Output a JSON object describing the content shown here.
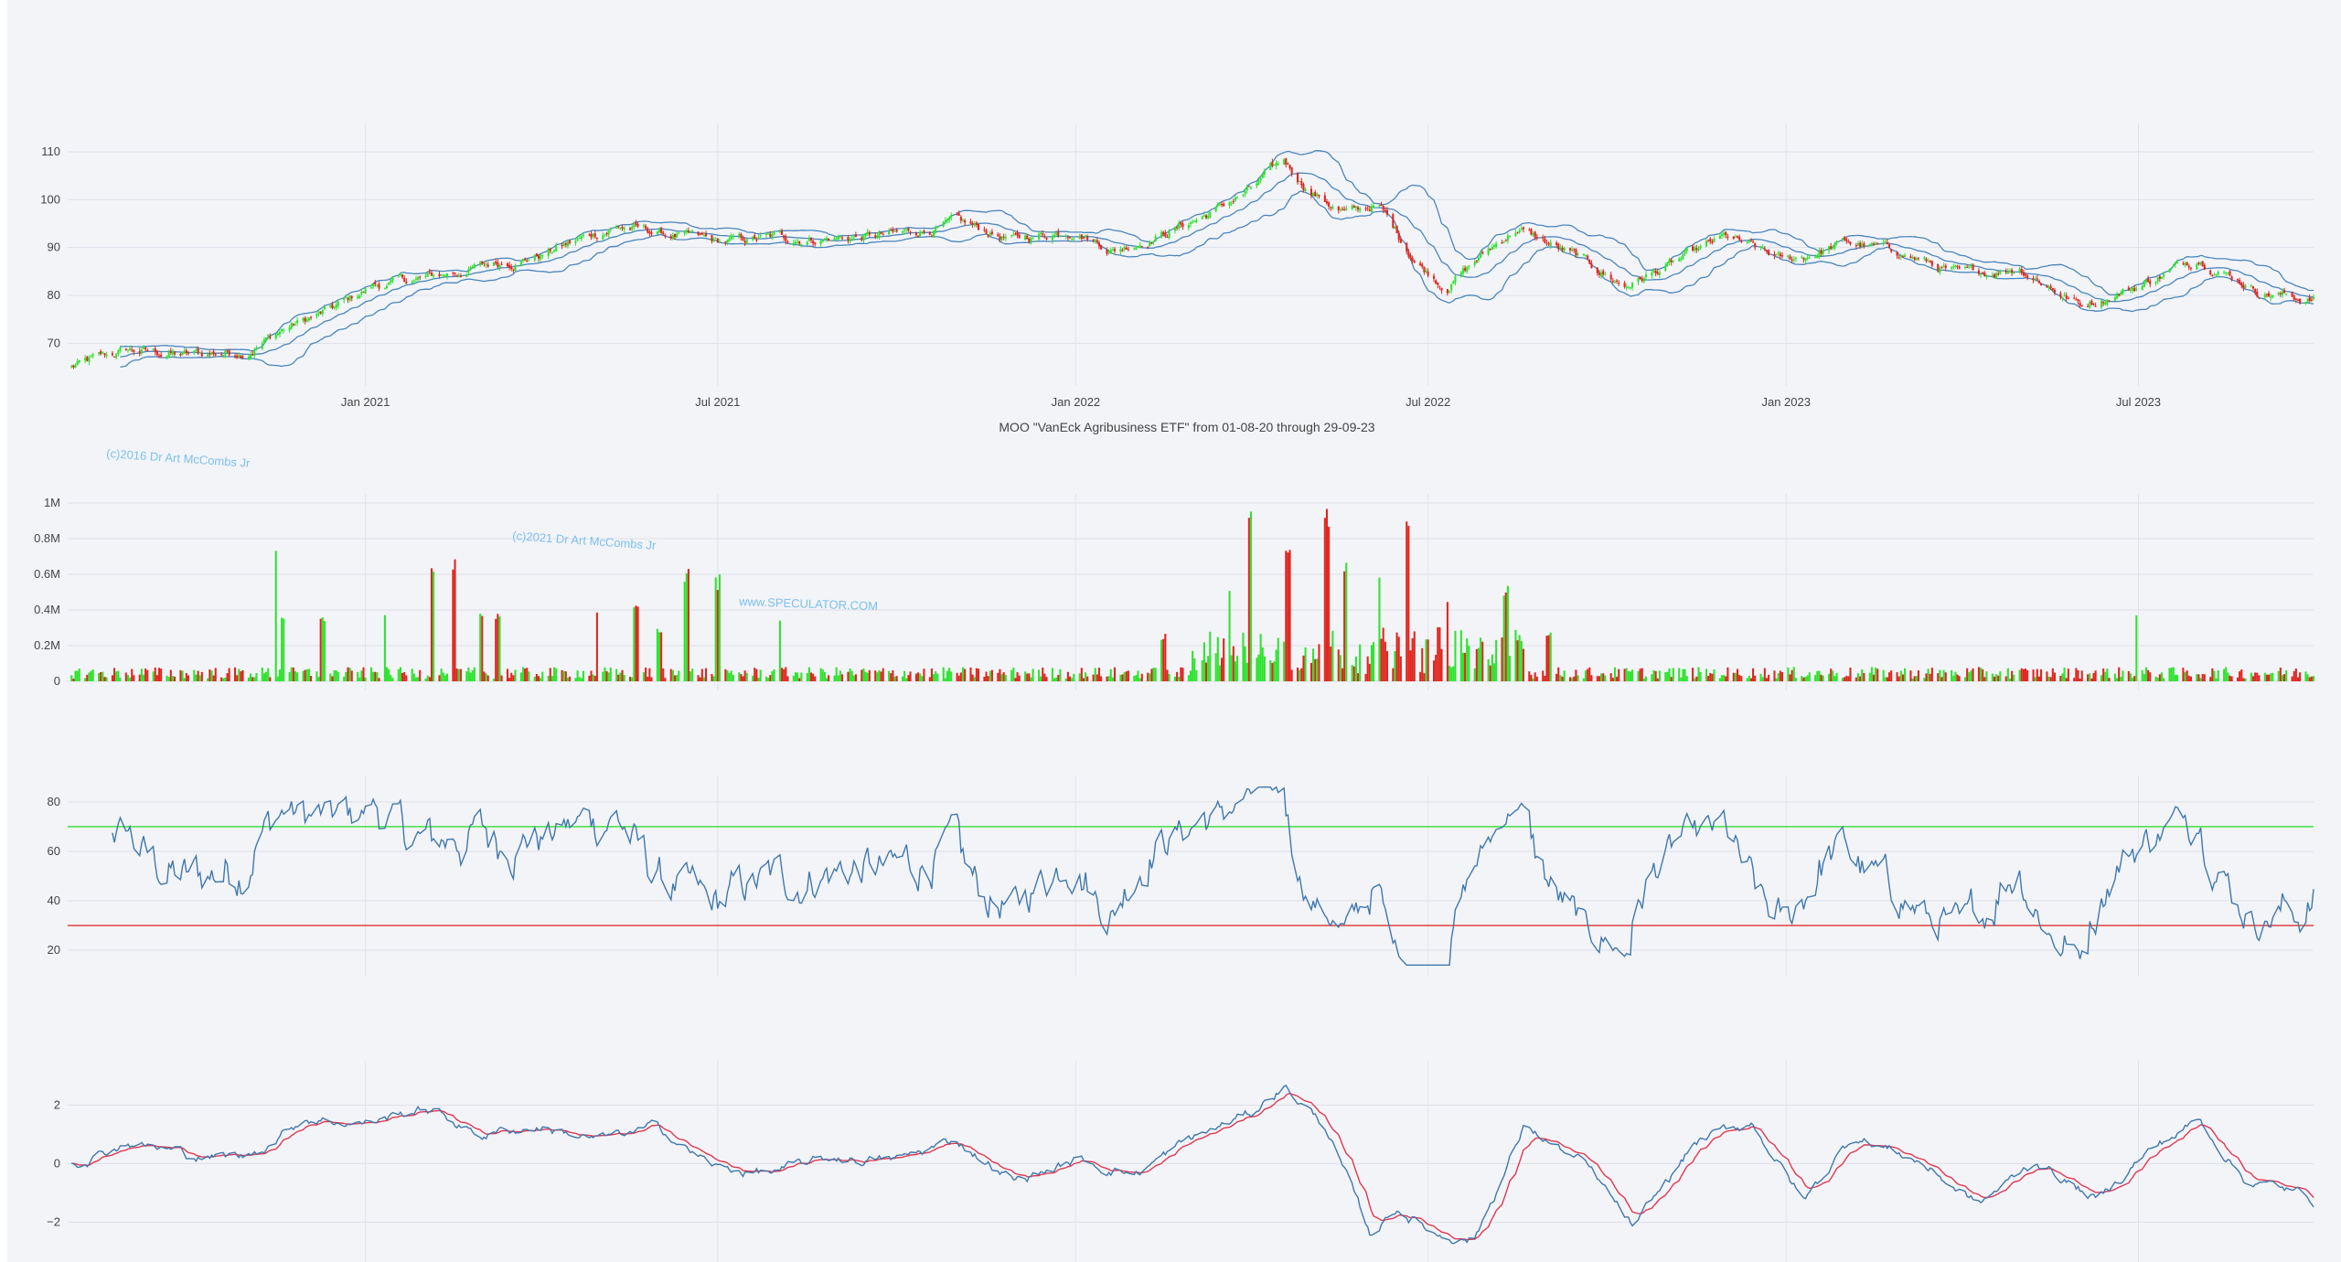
{
  "chart_data": [
    {
      "type": "candlestick",
      "name_id": "price-panel",
      "ylim": [
        63,
        114
      ],
      "yticks": [
        "70",
        "80",
        "90",
        "100",
        "110"
      ],
      "ytick_values": [
        70,
        80,
        90,
        100,
        110
      ],
      "xlim": [
        "2020-08-01",
        "2023-09-29"
      ],
      "xticks": [
        "Jan 2021",
        "Jul 2021",
        "Jan 2022",
        "Jul 2022",
        "Jan 2023",
        "Jul 2023"
      ],
      "xtick_dates": [
        "2021-01-01",
        "2021-07-01",
        "2022-01-01",
        "2022-07-01",
        "2023-01-01",
        "2023-07-01"
      ],
      "close_anchors": [
        [
          "2020-08-03",
          65
        ],
        [
          "2020-09-01",
          68.5
        ],
        [
          "2020-10-01",
          67.5
        ],
        [
          "2020-11-01",
          68.5
        ],
        [
          "2020-11-20",
          73
        ],
        [
          "2020-12-15",
          77
        ],
        [
          "2021-01-05",
          82
        ],
        [
          "2021-02-01",
          83.5
        ],
        [
          "2021-03-01",
          86
        ],
        [
          "2021-04-01",
          88.5
        ],
        [
          "2021-05-10",
          94.5
        ],
        [
          "2021-06-01",
          93
        ],
        [
          "2021-07-01",
          91
        ],
        [
          "2021-08-01",
          92
        ],
        [
          "2021-09-01",
          92
        ],
        [
          "2021-10-01",
          92.5
        ],
        [
          "2021-11-01",
          95
        ],
        [
          "2021-12-01",
          91.5
        ],
        [
          "2022-01-01",
          94
        ],
        [
          "2022-01-20",
          89.5
        ],
        [
          "2022-02-15",
          93
        ],
        [
          "2022-03-10",
          97
        ],
        [
          "2022-04-01",
          102
        ],
        [
          "2022-04-18",
          108
        ],
        [
          "2022-05-01",
          102
        ],
        [
          "2022-05-20",
          97
        ],
        [
          "2022-06-05",
          99
        ],
        [
          "2022-06-25",
          87
        ],
        [
          "2022-07-10",
          82
        ],
        [
          "2022-08-15",
          94
        ],
        [
          "2022-09-15",
          88
        ],
        [
          "2022-10-10",
          82
        ],
        [
          "2022-11-01",
          86
        ],
        [
          "2022-12-01",
          92
        ],
        [
          "2023-01-01",
          87
        ],
        [
          "2023-02-01",
          91
        ],
        [
          "2023-03-01",
          89
        ],
        [
          "2023-04-01",
          84
        ],
        [
          "2023-05-01",
          86
        ],
        [
          "2023-06-01",
          78
        ],
        [
          "2023-07-01",
          82
        ],
        [
          "2023-08-01",
          88
        ],
        [
          "2023-09-01",
          81
        ],
        [
          "2023-09-29",
          79
        ]
      ],
      "bollinger": {
        "window": 20,
        "stdev": 2,
        "color": "#4a86bd"
      },
      "up_color": "#2fe32f",
      "down_color": "#e0261f"
    },
    {
      "type": "bar",
      "name_id": "volume-panel",
      "ylim": [
        0,
        1000000
      ],
      "yticks": [
        "0",
        "0.2M",
        "0.4M",
        "0.6M",
        "0.8M",
        "1M"
      ],
      "ytick_values": [
        0,
        200000,
        400000,
        600000,
        800000,
        1000000
      ],
      "base_volume": 50000,
      "spikes": [
        [
          "2020-11-15",
          820000
        ],
        [
          "2020-11-20",
          400000
        ],
        [
          "2020-12-10",
          390000
        ],
        [
          "2021-01-10",
          410000
        ],
        [
          "2021-02-05",
          720000
        ],
        [
          "2021-02-15",
          730000
        ],
        [
          "2021-03-01",
          390000
        ],
        [
          "2021-03-10",
          400000
        ],
        [
          "2021-05-01",
          390000
        ],
        [
          "2021-05-20",
          460000
        ],
        [
          "2021-06-01",
          300000
        ],
        [
          "2021-06-15",
          650000
        ],
        [
          "2021-07-01",
          600000
        ],
        [
          "2021-08-01",
          380000
        ],
        [
          "2022-02-15",
          270000
        ],
        [
          "2022-03-20",
          580000
        ],
        [
          "2022-04-01",
          980000
        ],
        [
          "2022-04-20",
          830000
        ],
        [
          "2022-05-10",
          980000
        ],
        [
          "2022-05-20",
          700000
        ],
        [
          "2022-06-05",
          650000
        ],
        [
          "2022-06-20",
          980000
        ],
        [
          "2022-07-10",
          520000
        ],
        [
          "2022-08-10",
          560000
        ],
        [
          "2022-09-01",
          300000
        ],
        [
          "2023-07-01",
          390000
        ]
      ],
      "up_color": "#2fe32f",
      "down_color": "#e0261f"
    },
    {
      "type": "line",
      "name_id": "rsi-panel",
      "ylim": [
        13,
        87
      ],
      "yticks": [
        "20",
        "40",
        "60",
        "80"
      ],
      "ytick_values": [
        20,
        40,
        60,
        80
      ],
      "overbought": 70,
      "oversold": 30,
      "overbought_color": "#33dd33",
      "oversold_color": "#e03030",
      "line_color": "#3f78ad"
    },
    {
      "type": "line",
      "name_id": "macd-panel",
      "ylim": [
        -3.3,
        3.2
      ],
      "yticks": [
        "2",
        "0",
        "−2"
      ],
      "ytick_values": [
        2,
        0,
        -2
      ],
      "series": [
        {
          "color": "#3f78ad"
        },
        {
          "color": "#e03850"
        }
      ],
      "anchors": [
        [
          "2020-08-03",
          0
        ],
        [
          "2020-09-01",
          0.8
        ],
        [
          "2020-10-01",
          0.3
        ],
        [
          "2020-11-01",
          0.2
        ],
        [
          "2020-12-01",
          1.6
        ],
        [
          "2021-01-01",
          1.4
        ],
        [
          "2021-02-01",
          1.9
        ],
        [
          "2021-03-01",
          1.0
        ],
        [
          "2021-04-01",
          1.3
        ],
        [
          "2021-05-01",
          0.8
        ],
        [
          "2021-06-01",
          1.2
        ],
        [
          "2021-07-01",
          -0.2
        ],
        [
          "2021-08-01",
          -0.3
        ],
        [
          "2021-09-01",
          0.2
        ],
        [
          "2021-10-01",
          0.1
        ],
        [
          "2021-11-01",
          0.8
        ],
        [
          "2021-12-01",
          -0.6
        ],
        [
          "2022-01-01",
          0.1
        ],
        [
          "2022-02-01",
          -0.3
        ],
        [
          "2022-03-01",
          0.8
        ],
        [
          "2022-04-01",
          1.7
        ],
        [
          "2022-04-18",
          2.7
        ],
        [
          "2022-05-10",
          1.2
        ],
        [
          "2022-06-01",
          -2.5
        ],
        [
          "2022-06-15",
          -1.5
        ],
        [
          "2022-07-05",
          -2.4
        ],
        [
          "2022-07-25",
          -2.5
        ],
        [
          "2022-08-20",
          1.3
        ],
        [
          "2022-09-20",
          -0.1
        ],
        [
          "2022-10-15",
          -2.3
        ],
        [
          "2022-11-15",
          0.7
        ],
        [
          "2022-12-15",
          1.4
        ],
        [
          "2023-01-10",
          -1.3
        ],
        [
          "2023-02-05",
          1.0
        ],
        [
          "2023-03-10",
          0.1
        ],
        [
          "2023-04-10",
          -1.4
        ],
        [
          "2023-05-10",
          0.1
        ],
        [
          "2023-06-10",
          -1.3
        ],
        [
          "2023-07-01",
          0.2
        ],
        [
          "2023-08-01",
          1.5
        ],
        [
          "2023-08-25",
          -0.5
        ],
        [
          "2023-09-29",
          -1.2
        ]
      ]
    }
  ],
  "caption": "MOO \"VanEck Agribusiness ETF\" from 01-08-20 through 29-09-23",
  "watermarks": [
    "(c)2016 Dr Art McCombs Jr",
    "(c)2021 Dr Art McCombs Jr",
    "www.SPECULATOR.COM"
  ]
}
